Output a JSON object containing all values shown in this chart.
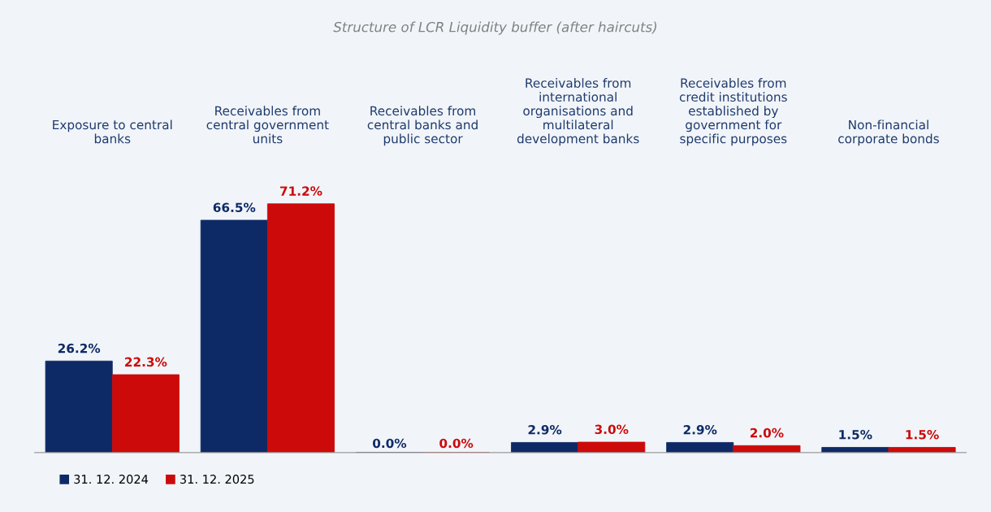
{
  "chart_data": {
    "type": "bar",
    "title": "Structure of LCR Liquidity buffer (after haircuts)",
    "categories": [
      "Exposure to central\nbanks",
      "Receivables from\ncentral government\nunits",
      "Receivables from\ncentral banks and\npublic sector",
      "Receivables from\ninternational\norganisations and\nmultilateral\ndevelopment banks",
      "Receivables from\ncredit institutions\nestablished by\ngovernment for\nspecific purposes",
      "Non-financial\ncorporate bonds"
    ],
    "series": [
      {
        "name": "31. 12. 2024",
        "color": "#0e2a66",
        "values": [
          26.2,
          66.5,
          0.0,
          2.9,
          2.9,
          1.5
        ],
        "value_labels": [
          "26.2%",
          "66.5%",
          "0.0%",
          "2.9%",
          "2.9%",
          "1.5%"
        ]
      },
      {
        "name": "31. 12. 2025",
        "color": "#cc0a0a",
        "values": [
          22.3,
          71.2,
          0.0,
          3.0,
          2.0,
          1.5
        ],
        "value_labels": [
          "22.3%",
          "71.2%",
          "0.0%",
          "3.0%",
          "2.0%",
          "1.5%"
        ]
      }
    ],
    "legend": "bottom left",
    "grid": false
  }
}
